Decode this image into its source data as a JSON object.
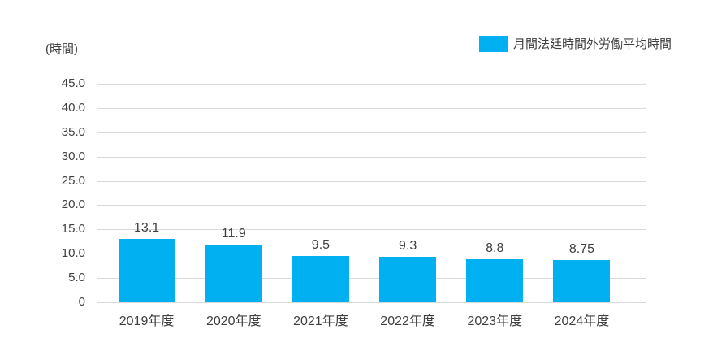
{
  "page": {
    "background_color": "#ffffff",
    "text_color": "#404040"
  },
  "legend": {
    "label": "月間法廷時間外労働平均時間",
    "swatch_color": "#00B0F0",
    "position": "top-right"
  },
  "y_axis": {
    "unit_label": "(時間)",
    "tick_labels": [
      "45.0",
      "40.0",
      "35.0",
      "30.0",
      "25.0",
      "20.0",
      "15.0",
      "10.0",
      "5.0",
      "0"
    ]
  },
  "chart_data": {
    "type": "bar",
    "title": "",
    "xlabel": "",
    "ylabel": "(時間)",
    "categories": [
      "2019年度",
      "2020年度",
      "2021年度",
      "2022年度",
      "2023年度",
      "2024年度"
    ],
    "series": [
      {
        "name": "月間法廷時間外労働平均時間",
        "values": [
          13.1,
          11.9,
          9.5,
          9.3,
          8.8,
          8.75
        ],
        "value_labels": [
          "13.1",
          "11.9",
          "9.5",
          "9.3",
          "8.8",
          "8.75"
        ],
        "color": "#00B0F0"
      }
    ],
    "ylim": [
      0,
      45
    ],
    "ytick_interval": 5,
    "grid": true,
    "gridline_color": "#D9D9D9",
    "legend_position": "top-right",
    "data_labels": true
  }
}
